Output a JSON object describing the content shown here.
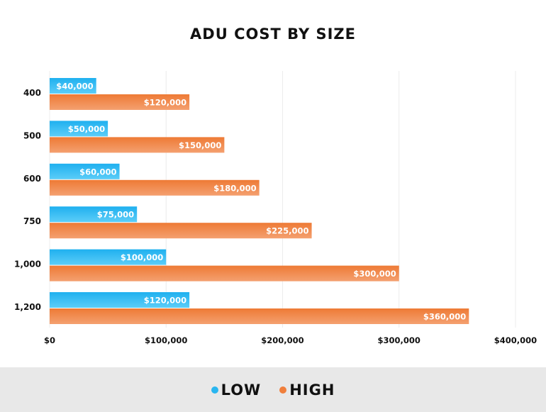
{
  "chart_data": {
    "type": "bar",
    "orientation": "horizontal",
    "title": "ADU COST BY SIZE",
    "categories": [
      "400",
      "500",
      "600",
      "750",
      "1,000",
      "1,200"
    ],
    "series": [
      {
        "name": "LOW",
        "color": "#29b6f0",
        "values": [
          40000,
          50000,
          60000,
          75000,
          100000,
          120000
        ],
        "labels": [
          "$40,000",
          "$50,000",
          "$60,000",
          "$75,000",
          "$100,000",
          "$120,000"
        ]
      },
      {
        "name": "HIGH",
        "color": "#f07f3c",
        "values": [
          120000,
          150000,
          180000,
          225000,
          300000,
          360000
        ],
        "labels": [
          "$120,000",
          "$150,000",
          "$180,000",
          "$225,000",
          "$300,000",
          "$360,000"
        ]
      }
    ],
    "xlim": [
      0,
      400000
    ],
    "xticks": [
      0,
      100000,
      200000,
      300000,
      400000
    ],
    "xtick_labels": [
      "$0",
      "$100,000",
      "$200,000",
      "$300,000",
      "$400,000"
    ],
    "grid": true,
    "legend_position": "bottom"
  }
}
